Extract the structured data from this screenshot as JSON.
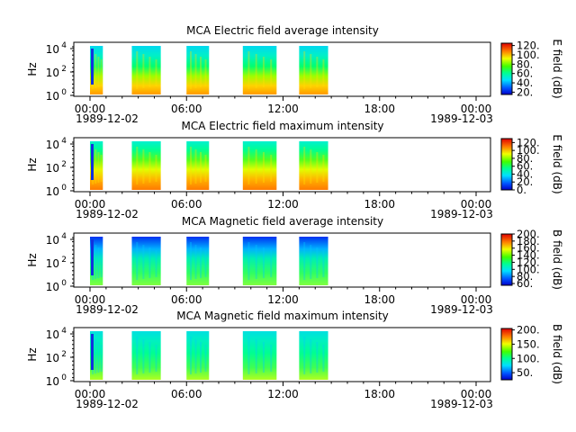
{
  "chart_data": [
    {
      "type": "heatmap",
      "title": "MCA  Electric field average intensity",
      "ylabel": "Hz",
      "y_scale": "log",
      "y_ticks": [
        {
          "base": "10",
          "exp": "0"
        },
        {
          "base": "10",
          "exp": "2"
        },
        {
          "base": "10",
          "exp": "4"
        }
      ],
      "x_ticks": [
        "00:00",
        "06:00",
        "12:00",
        "18:00",
        "00:00"
      ],
      "x_dates": [
        "1989-12-02",
        "1989-12-03"
      ],
      "colorbar": {
        "label": "E field (dB)",
        "ticks": [
          "20.",
          "40.",
          "60.",
          "80.",
          "100.",
          "120."
        ],
        "range": [
          15,
          125
        ]
      },
      "data_blocks_hours": [
        [
          0.0,
          0.8
        ],
        [
          2.6,
          4.4
        ],
        [
          6.0,
          7.4
        ],
        [
          9.5,
          11.6
        ],
        [
          13.0,
          14.8
        ]
      ]
    },
    {
      "type": "heatmap",
      "title": "MCA  Electric field maximum intensity",
      "ylabel": "Hz",
      "y_scale": "log",
      "y_ticks": [
        {
          "base": "10",
          "exp": "0"
        },
        {
          "base": "10",
          "exp": "2"
        },
        {
          "base": "10",
          "exp": "4"
        }
      ],
      "x_ticks": [
        "00:00",
        "06:00",
        "12:00",
        "18:00",
        "00:00"
      ],
      "x_dates": [
        "1989-12-02",
        "1989-12-03"
      ],
      "colorbar": {
        "label": "E field (dB)",
        "ticks": [
          "0.",
          "20.",
          "40.",
          "60.",
          "80.",
          "100.",
          "120."
        ],
        "range": [
          0,
          130
        ]
      },
      "data_blocks_hours": [
        [
          0.0,
          0.8
        ],
        [
          2.6,
          4.4
        ],
        [
          6.0,
          7.4
        ],
        [
          9.5,
          11.6
        ],
        [
          13.0,
          14.8
        ]
      ]
    },
    {
      "type": "heatmap",
      "title": "MCA  Magnetic field average intensity",
      "ylabel": "Hz",
      "y_scale": "log",
      "y_ticks": [
        {
          "base": "10",
          "exp": "0"
        },
        {
          "base": "10",
          "exp": "2"
        },
        {
          "base": "10",
          "exp": "4"
        }
      ],
      "x_ticks": [
        "00:00",
        "06:00",
        "12:00",
        "18:00",
        "00:00"
      ],
      "x_dates": [
        "1989-12-02",
        "1989-12-03"
      ],
      "colorbar": {
        "label": "B field (dB)",
        "ticks": [
          "60.",
          "80.",
          "100.",
          "120.",
          "140.",
          "160.",
          "180.",
          "200."
        ],
        "range": [
          55,
          200
        ]
      },
      "data_blocks_hours": [
        [
          0.0,
          0.8
        ],
        [
          2.6,
          4.4
        ],
        [
          6.0,
          7.4
        ],
        [
          9.5,
          11.6
        ],
        [
          13.0,
          14.8
        ]
      ]
    },
    {
      "type": "heatmap",
      "title": "MCA  Magnetic field maximum intensity",
      "ylabel": "Hz",
      "y_scale": "log",
      "y_ticks": [
        {
          "base": "10",
          "exp": "0"
        },
        {
          "base": "10",
          "exp": "2"
        },
        {
          "base": "10",
          "exp": "4"
        }
      ],
      "x_ticks": [
        "00:00",
        "06:00",
        "12:00",
        "18:00",
        "00:00"
      ],
      "x_dates": [
        "1989-12-02",
        "1989-12-03"
      ],
      "colorbar": {
        "label": "B field (dB)",
        "ticks": [
          "50.",
          "100.",
          "150.",
          "200."
        ],
        "range": [
          25,
          205
        ]
      },
      "data_blocks_hours": [
        [
          0.0,
          0.8
        ],
        [
          2.6,
          4.4
        ],
        [
          6.0,
          7.4
        ],
        [
          9.5,
          11.6
        ],
        [
          13.0,
          14.8
        ]
      ]
    }
  ]
}
